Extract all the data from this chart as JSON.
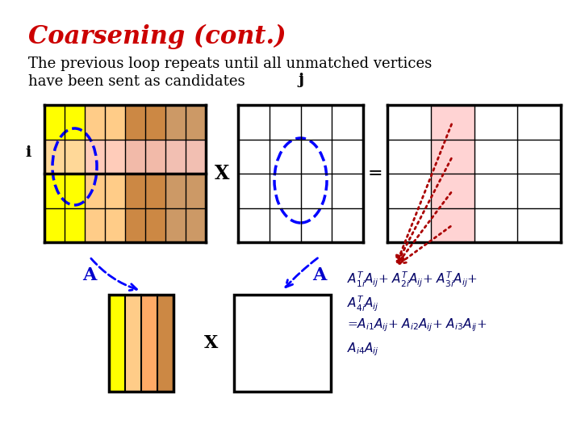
{
  "title": "Coarsening (cont.)",
  "title_color": "#cc0000",
  "body_text_line1": "The previous loop repeats until all unmatched vertices",
  "body_text_line2": "have been sent as candidates",
  "bg_color": "#ffffff",
  "text_color": "#000000",
  "label_j": "j",
  "label_i": "i",
  "label_A1": "A",
  "label_A2": "A",
  "label_X1": "X",
  "label_X2": "X",
  "equal_sign": "=",
  "pink_color": "#ffcccc",
  "col_colors_A": [
    "#ffff00",
    "#ffff00",
    "#ffcc88",
    "#ffcc88",
    "#cc8844",
    "#cc8844",
    "#cc9966",
    "#cc9966"
  ],
  "small_col_colors": [
    "#ffff00",
    "#ffcc88",
    "#ffaa66",
    "#cc8844"
  ],
  "blue_label_color": "#0000cc",
  "formula_color": "#000066",
  "red_arrow_color": "#aa0000"
}
